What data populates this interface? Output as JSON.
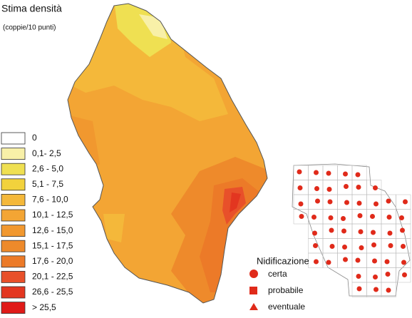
{
  "title": "Stima densità",
  "subtitle": "(coppie/10 punti)",
  "density_legend": [
    {
      "label": "0",
      "color": "#ffffff"
    },
    {
      "label": "0,1- 2,5",
      "color": "#f8f0a8"
    },
    {
      "label": "2,6 - 5,0",
      "color": "#efe052"
    },
    {
      "label": "5,1 - 7,5",
      "color": "#f2d23c"
    },
    {
      "label": "7,6 - 10,0",
      "color": "#f4b83a"
    },
    {
      "label": "10,1 - 12,5",
      "color": "#f3a534"
    },
    {
      "label": "12,6 - 15,0",
      "color": "#f1982f"
    },
    {
      "label": "15,1 - 17,5",
      "color": "#ee8a2b"
    },
    {
      "label": "17,6 - 20,0",
      "color": "#ec7a28"
    },
    {
      "label": "20,1 - 22,5",
      "color": "#e8502a"
    },
    {
      "label": "26,6 - 25,5",
      "color": "#e33620"
    },
    {
      "label": "> 25,5",
      "color": "#e01a18"
    }
  ],
  "nesting_legend": {
    "title": "Nidificazione",
    "items": [
      "certa",
      "probabile",
      "eventuale"
    ]
  }
}
